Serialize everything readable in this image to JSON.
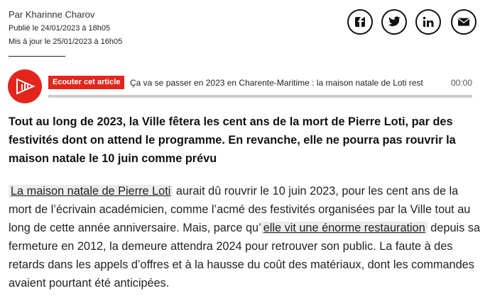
{
  "byline": {
    "author": "Par Kharinne Charov",
    "published": "Publié le 24/01/2023 à 18h05",
    "updated": "Mis à jour le 25/01/2023 à 16h05"
  },
  "audio": {
    "button_label": "Ecouter cet article",
    "title": "Ça va se passer en 2023 en Charente-Maritime : la maison natale de Loti rest",
    "time": "00:00"
  },
  "lede": "Tout au long de 2023, la Ville fêtera les cent ans de la mort de Pierre Loti, par des festivités dont on attend le programme. En revanche, elle ne pourra pas rouvrir la maison natale le 10 juin comme prévu",
  "body": {
    "segments": [
      {
        "link": "La maison natale de Pierre Loti"
      },
      {
        "text": " aurait dû rouvrir le 10 juin 2023, pour les cent ans de la mort de l’écrivain académicien, comme l’acmé des festivités organisées par la Ville tout au long de cette année anniversaire. Mais, parce qu’"
      },
      {
        "link": "elle vit une énorme restauration"
      },
      {
        "text": " depuis sa fermeture en 2012, la demeure attendra 2024 pour retrouver son public. La faute à des retards dans les appels d’offres et à la hausse du coût des matériaux, dont les commandes avaient pourtant été anticipées."
      }
    ]
  }
}
